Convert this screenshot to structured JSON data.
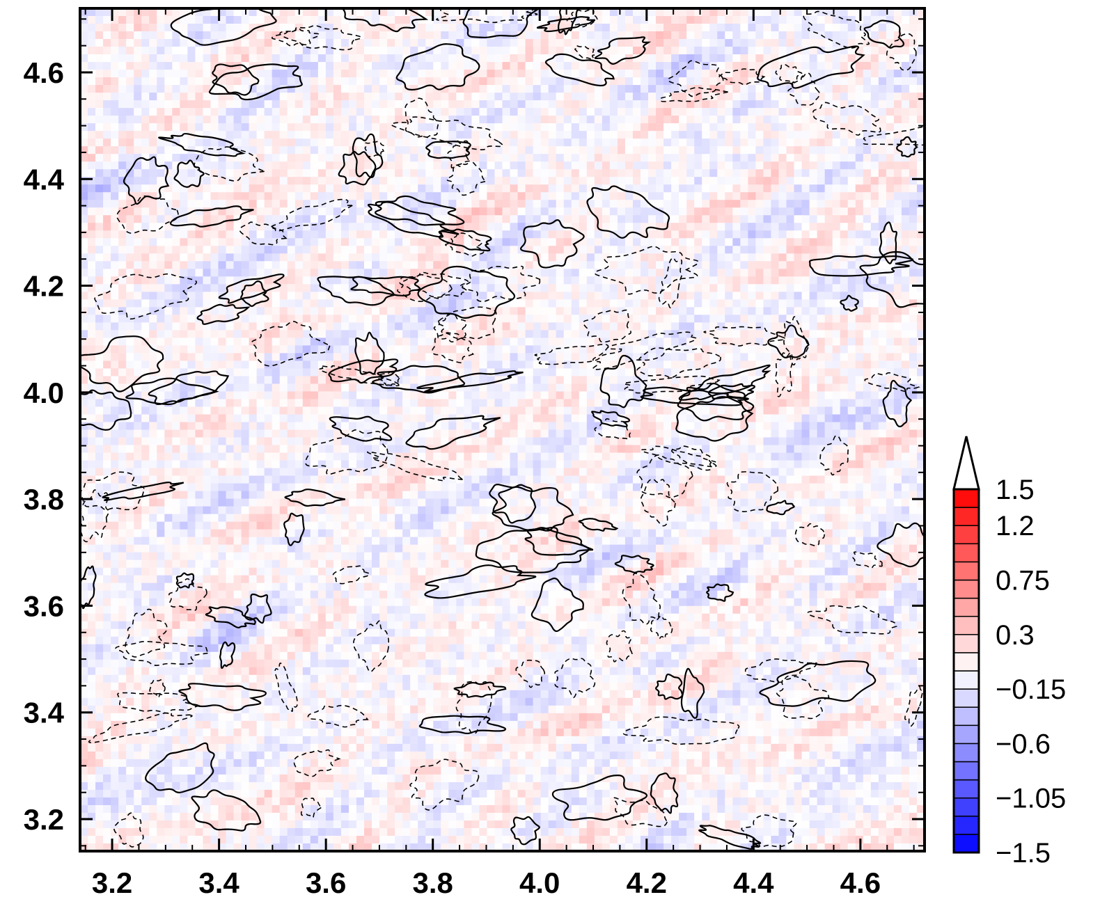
{
  "chart_data": {
    "type": "heatmap",
    "title": "",
    "xlabel": "",
    "ylabel": "",
    "xlim": [
      3.14,
      4.72
    ],
    "ylim": [
      3.14,
      4.72
    ],
    "x_ticks": [
      "3.2",
      "3.4",
      "3.6",
      "3.8",
      "4.0",
      "4.2",
      "4.4",
      "4.6"
    ],
    "y_ticks": [
      "3.2",
      "3.4",
      "3.6",
      "3.8",
      "4.0",
      "4.2",
      "4.4",
      "4.6"
    ],
    "x_tick_values": [
      3.2,
      3.4,
      3.6,
      3.8,
      4.0,
      4.2,
      4.4,
      4.6
    ],
    "y_tick_values": [
      3.2,
      3.4,
      3.6,
      3.8,
      4.0,
      4.2,
      4.4,
      4.6
    ],
    "contours": "solid lines for positive contour level, dashed lines for negative contour level",
    "colorbar": {
      "range": [
        -1.5,
        1.5
      ],
      "step": 0.15,
      "extend": "max",
      "label_values": [
        1.5,
        1.2,
        0.75,
        0.3,
        -0.15,
        -0.6,
        -1.05,
        -1.5
      ],
      "labels": [
        "1.5",
        "1.2",
        "0.75",
        "0.3",
        "−0.15",
        "−0.6",
        "−1.05",
        "−1.5"
      ],
      "low_color": "#0000ff",
      "mid_color": "#ffffff",
      "high_color": "#ff0000"
    }
  }
}
